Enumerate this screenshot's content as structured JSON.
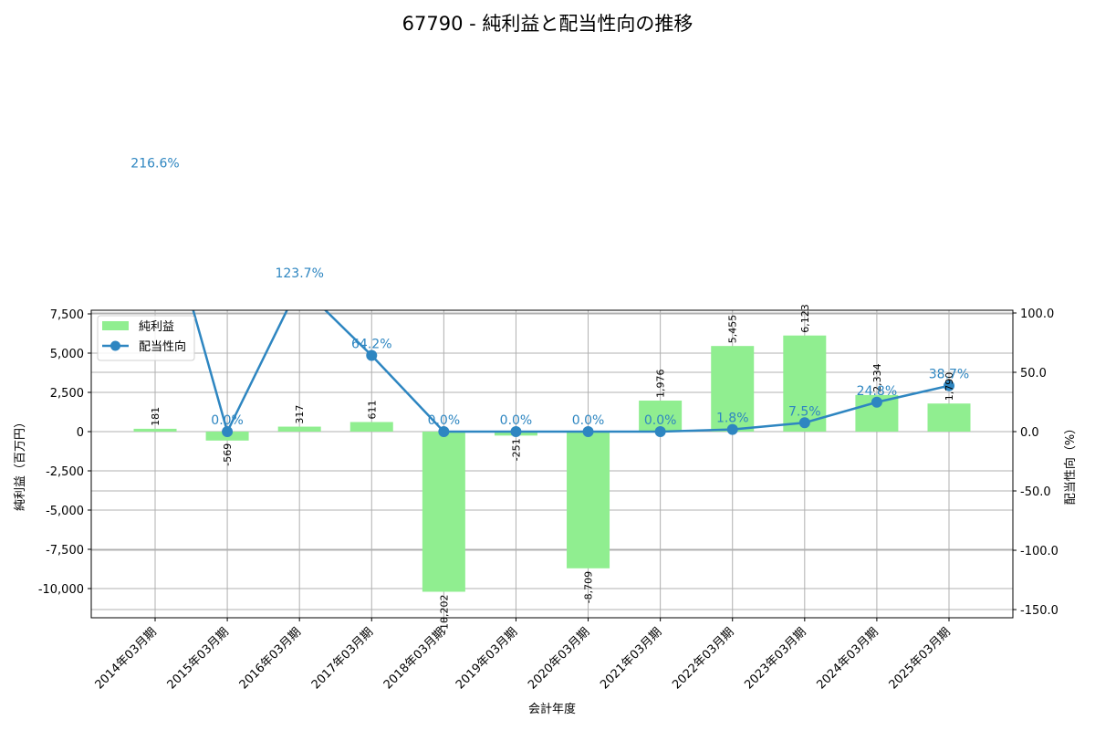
{
  "title": "67790 - 純利益と配当性向の推移",
  "colors": {
    "bar": "#90ee90",
    "line": "#2e86c1",
    "grid": "#b0b0b0"
  },
  "legend": {
    "bar_label": "純利益",
    "line_label": "配当性向"
  },
  "chart_data": {
    "type": "bar+line",
    "title": "67790 - 純利益と配当性向の推移",
    "xlabel": "会計年度",
    "ylabel": "純利益（百万円）",
    "ylabel_right": "配当性向（%）",
    "categories": [
      "2014年03月期",
      "2015年03月期",
      "2016年03月期",
      "2017年03月期",
      "2018年03月期",
      "2019年03月期",
      "2020年03月期",
      "2021年03月期",
      "2022年03月期",
      "2023年03月期",
      "2024年03月期",
      "2025年03月期"
    ],
    "series": [
      {
        "name": "純利益",
        "type": "bar",
        "axis": "left",
        "values": [
          181,
          -569,
          317,
          611,
          -10202,
          -251,
          -8709,
          1976,
          5455,
          6123,
          2334,
          1790
        ],
        "labels": [
          "181",
          "-569",
          "317",
          "611",
          "-10,202",
          "-251",
          "-8,709",
          "1,976",
          "5,455",
          "6,123",
          "2,334",
          "1,790"
        ]
      },
      {
        "name": "配当性向",
        "type": "line",
        "axis": "right",
        "values": [
          216.6,
          0.0,
          123.7,
          64.2,
          0.0,
          0.0,
          0.0,
          0.0,
          1.8,
          7.5,
          24.8,
          38.7
        ],
        "labels": [
          "216.6%",
          "0.0%",
          "123.7%",
          "64.2%",
          "0.0%",
          "0.0%",
          "0.0%",
          "0.0%",
          "1.8%",
          "7.5%",
          "24.8%",
          "38.7%"
        ]
      }
    ],
    "ylim": [
      -11860,
      7733
    ],
    "ylim_right": [
      -156.9,
      102.3
    ],
    "yticks": [
      7500,
      5000,
      2500,
      0,
      -2500,
      -5000,
      -7500,
      -10000
    ],
    "yticklabels": [
      "7,500",
      "5,000",
      "2,500",
      "0",
      "-2,500",
      "-5,000",
      "-7,500",
      "-10,000"
    ],
    "yticks_right": [
      100,
      50,
      0,
      -50,
      -100,
      -150
    ],
    "yticklabels_right": [
      "100.0",
      "50.0",
      "0.0",
      "-50.0",
      "-100.0",
      "-150.0"
    ],
    "grid": true,
    "legend_position": "upper left"
  }
}
